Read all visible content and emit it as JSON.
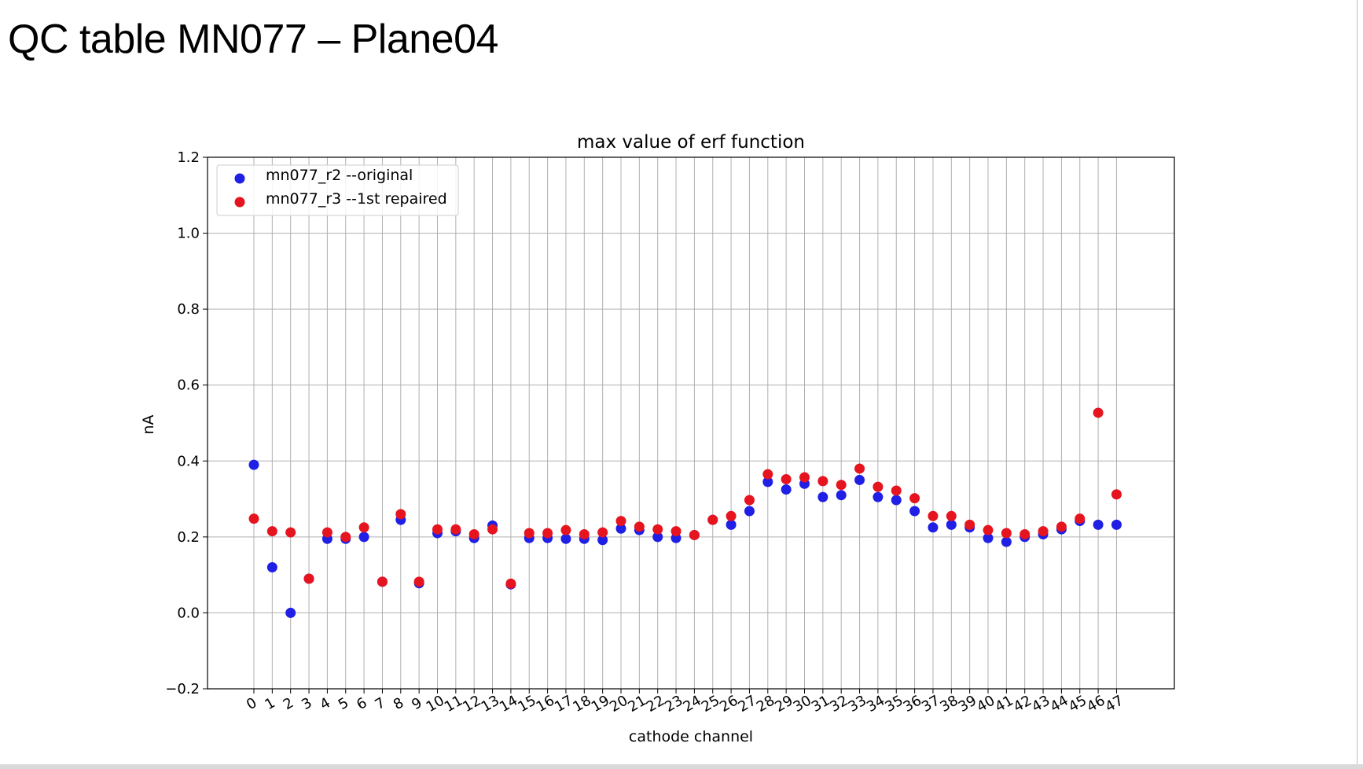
{
  "slide": {
    "title": "QC table MN077 – Plane04"
  },
  "chart_data": {
    "type": "scatter",
    "title": "max value of erf function",
    "xlabel": "cathode channel",
    "ylabel": "nA",
    "ylim": [
      -0.2,
      1.2
    ],
    "yticks": [
      "−0.2",
      "0.0",
      "0.2",
      "0.4",
      "0.6",
      "0.8",
      "1.0",
      "1.2"
    ],
    "x": [
      0,
      1,
      2,
      3,
      4,
      5,
      6,
      7,
      8,
      9,
      10,
      11,
      12,
      13,
      14,
      15,
      16,
      17,
      18,
      19,
      20,
      21,
      22,
      23,
      24,
      25,
      26,
      27,
      28,
      29,
      30,
      31,
      32,
      33,
      34,
      35,
      36,
      37,
      38,
      39,
      40,
      41,
      42,
      43,
      44,
      45,
      46,
      47
    ],
    "grid": true,
    "legend_position": "upper-left",
    "series": [
      {
        "name": "mn077_r2 --original",
        "color": "#1f1fe6",
        "values": [
          0.39,
          0.12,
          0.0,
          0.09,
          0.195,
          0.195,
          0.2,
          0.082,
          0.245,
          0.078,
          0.21,
          0.215,
          0.197,
          0.23,
          0.075,
          0.197,
          0.197,
          0.195,
          0.195,
          0.192,
          0.222,
          0.218,
          0.2,
          0.197,
          0.205,
          0.245,
          0.232,
          0.268,
          0.345,
          0.325,
          0.34,
          0.305,
          0.31,
          0.35,
          0.305,
          0.297,
          0.268,
          0.225,
          0.232,
          0.225,
          0.197,
          0.187,
          0.2,
          0.207,
          0.22,
          0.242,
          0.232,
          0.232
        ]
      },
      {
        "name": "mn077_r3 --1st repaired",
        "color": "#e6141e",
        "values": [
          0.248,
          0.215,
          0.212,
          0.09,
          0.212,
          0.2,
          0.225,
          0.082,
          0.26,
          0.082,
          0.22,
          0.22,
          0.207,
          0.22,
          0.077,
          0.21,
          0.21,
          0.218,
          0.207,
          0.212,
          0.242,
          0.227,
          0.22,
          0.215,
          0.205,
          0.245,
          0.255,
          0.297,
          0.365,
          0.352,
          0.357,
          0.347,
          0.337,
          0.38,
          0.332,
          0.322,
          0.302,
          0.255,
          0.255,
          0.232,
          0.218,
          0.21,
          0.207,
          0.215,
          0.227,
          0.248,
          0.527,
          0.312
        ]
      }
    ]
  }
}
